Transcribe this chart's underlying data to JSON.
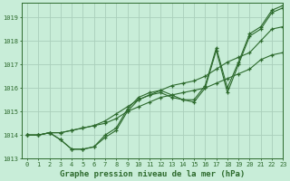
{
  "bg_color": "#c8edd8",
  "line_color": "#2d6a2d",
  "grid_color": "#aacfbb",
  "xlabel": "Graphe pression niveau de la mer (hPa)",
  "ylim": [
    1013.0,
    1019.6
  ],
  "xlim": [
    -0.5,
    23.0
  ],
  "yticks": [
    1013,
    1014,
    1015,
    1016,
    1017,
    1018,
    1019
  ],
  "xticks": [
    0,
    1,
    2,
    3,
    4,
    5,
    6,
    7,
    8,
    9,
    10,
    11,
    12,
    13,
    14,
    15,
    16,
    17,
    18,
    19,
    20,
    21,
    22,
    23
  ],
  "series": [
    [
      1014.0,
      1014.0,
      1014.1,
      1013.8,
      1013.4,
      1013.4,
      1013.5,
      1013.9,
      1014.2,
      1015.0,
      1015.5,
      1015.7,
      1015.8,
      1015.6,
      1015.5,
      1015.4,
      1016.0,
      1017.6,
      1015.8,
      1017.0,
      1018.2,
      1018.5,
      1019.2,
      1019.4
    ],
    [
      1014.0,
      1014.0,
      1014.1,
      1014.1,
      1014.2,
      1014.3,
      1014.4,
      1014.5,
      1014.7,
      1015.0,
      1015.2,
      1015.4,
      1015.6,
      1015.7,
      1015.8,
      1015.9,
      1016.0,
      1016.2,
      1016.4,
      1016.6,
      1016.8,
      1017.2,
      1017.4,
      1017.5
    ],
    [
      1014.0,
      1014.0,
      1014.1,
      1014.1,
      1014.2,
      1014.3,
      1014.4,
      1014.6,
      1014.9,
      1015.2,
      1015.5,
      1015.7,
      1015.9,
      1016.1,
      1016.2,
      1016.3,
      1016.5,
      1016.8,
      1017.1,
      1017.3,
      1017.5,
      1018.0,
      1018.5,
      1018.6
    ],
    [
      1014.0,
      1014.0,
      1014.1,
      1013.8,
      1013.4,
      1013.4,
      1013.5,
      1014.0,
      1014.3,
      1015.1,
      1015.6,
      1015.8,
      1015.9,
      1015.7,
      1015.5,
      1015.5,
      1016.1,
      1017.7,
      1016.0,
      1017.1,
      1018.3,
      1018.6,
      1019.3,
      1019.5
    ]
  ]
}
